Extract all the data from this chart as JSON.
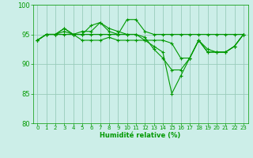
{
  "xlabel": "Humidité relative (%)",
  "bg_color": "#cceee8",
  "grid_color": "#99ccbb",
  "line_color": "#009900",
  "ylim": [
    80,
    100
  ],
  "xlim": [
    -0.5,
    23.5
  ],
  "yticks": [
    80,
    85,
    90,
    95,
    100
  ],
  "xticks": [
    0,
    1,
    2,
    3,
    4,
    5,
    6,
    7,
    8,
    9,
    10,
    11,
    12,
    13,
    14,
    15,
    16,
    17,
    18,
    19,
    20,
    21,
    22,
    23
  ],
  "series": [
    [
      94,
      95,
      95,
      95.5,
      95,
      95.5,
      95.5,
      97,
      95.5,
      95,
      97.5,
      97.5,
      95.5,
      95,
      95,
      95,
      95,
      95,
      95,
      95,
      95,
      95,
      95,
      95
    ],
    [
      94,
      95,
      95,
      96,
      95,
      95,
      96.5,
      97,
      96,
      95.5,
      95,
      95,
      94.5,
      92.5,
      91,
      89,
      89,
      91,
      94,
      92,
      92,
      92,
      93,
      95
    ],
    [
      94,
      95,
      95,
      96,
      95,
      95,
      95,
      95,
      95,
      95,
      95,
      95,
      94,
      93,
      92,
      85,
      88,
      91,
      94,
      92,
      92,
      92,
      93,
      95
    ],
    [
      94,
      95,
      95,
      95,
      95,
      94,
      94,
      94,
      94.5,
      94,
      94,
      94,
      94,
      94,
      94,
      93.5,
      91,
      91,
      94,
      92.5,
      92,
      92,
      93,
      95
    ]
  ]
}
